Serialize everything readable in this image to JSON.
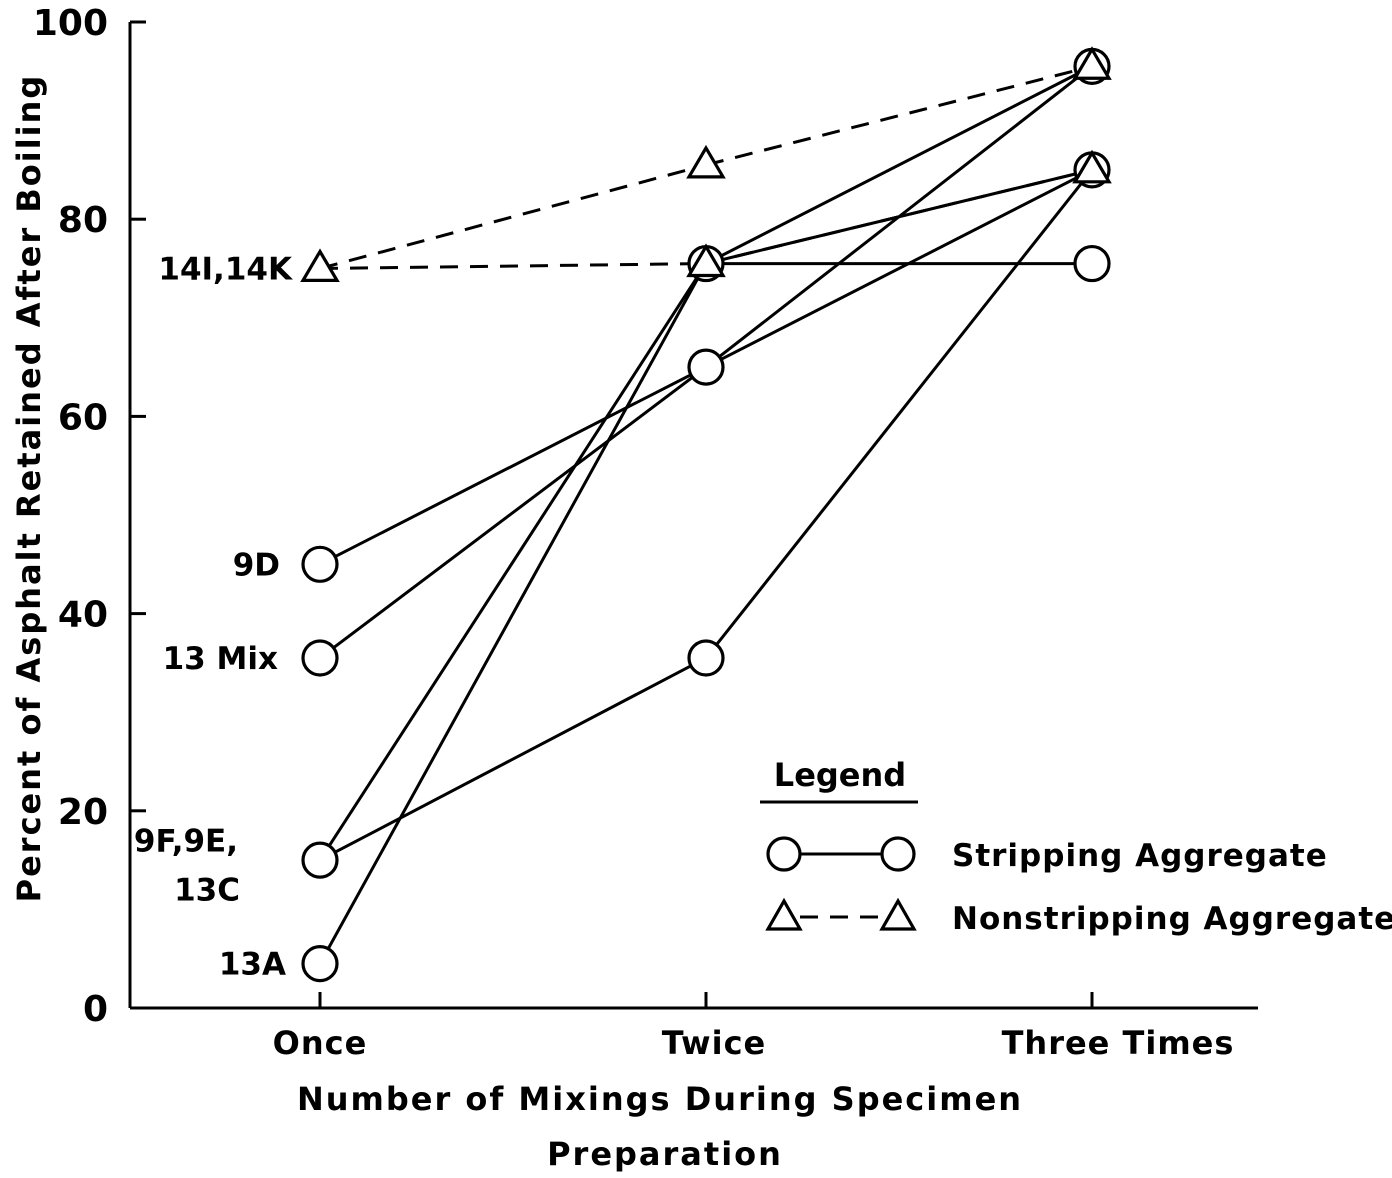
{
  "chart_data": {
    "type": "line",
    "categories": [
      "Once",
      "Twice",
      "Three Times"
    ],
    "xlabel_lines": [
      "Number of Mixings During Specimen",
      "Preparation"
    ],
    "ylabel": "Percent of Asphalt Retained After Boiling",
    "ylim": [
      0,
      100
    ],
    "yticks": [
      0,
      20,
      40,
      60,
      80,
      100
    ],
    "grid": false,
    "legend": {
      "title": "Legend",
      "placement": "bottom-right",
      "entries": [
        {
          "marker": "circle",
          "style": "solid",
          "label": "Stripping Aggregate"
        },
        {
          "marker": "triangle",
          "style": "dashed",
          "label": "Nonstripping Aggregate"
        }
      ]
    },
    "point_labels": [
      {
        "text": "14I,14K",
        "category": 0,
        "y": 75
      },
      {
        "text": "9D",
        "category": 0,
        "y": 45
      },
      {
        "text": "13 Mix",
        "category": 0,
        "y": 35.5
      },
      {
        "text": "9F,9E,",
        "category": 0,
        "y": 17
      },
      {
        "text": "13C",
        "category": 0,
        "y": 12
      },
      {
        "text": "13A",
        "category": 0,
        "y": 4.5
      }
    ],
    "series": [
      {
        "type": "stripping",
        "values": [
          4.5,
          75.5,
          95.5
        ]
      },
      {
        "type": "stripping",
        "values": [
          15,
          75.5,
          85
        ]
      },
      {
        "type": "stripping",
        "values": [
          15,
          35.5,
          85
        ]
      },
      {
        "type": "stripping",
        "values": [
          35.5,
          65,
          95.5
        ]
      },
      {
        "type": "stripping",
        "values": [
          45,
          65,
          85
        ]
      },
      {
        "type": "stripping",
        "values": [
          null,
          75.5,
          75.5
        ]
      },
      {
        "type": "nonstripping",
        "values": [
          75,
          85.5,
          95.5
        ]
      },
      {
        "type": "nonstripping",
        "values": [
          75,
          75.5,
          85
        ]
      }
    ]
  }
}
